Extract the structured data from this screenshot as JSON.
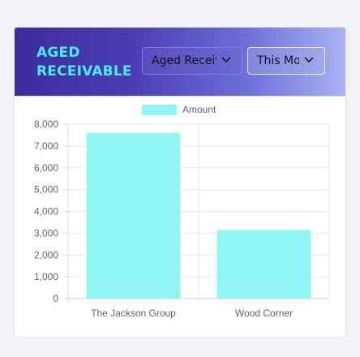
{
  "card": {
    "title": "AGED\nRECEIVABLE",
    "report_select": {
      "value": "Aged Receivable"
    },
    "period_select": {
      "value": "This Month"
    },
    "chevron_icon": "chevron-down-icon"
  },
  "colors": {
    "title": "#3ff0f3",
    "bar": "#8ff6f4",
    "header_start": "#3d2c9d",
    "header_end": "#a9b4f3"
  },
  "chart_data": {
    "type": "bar",
    "categories": [
      "The Jackson Group",
      "Wood Corner"
    ],
    "series": [
      {
        "name": "Amount",
        "values": [
          7600,
          3150
        ]
      }
    ],
    "y_ticks": [
      "0",
      "1,000",
      "2,000",
      "3,000",
      "4,000",
      "5,000",
      "6,000",
      "7,000",
      "8,000"
    ],
    "ylim": [
      0,
      8000
    ],
    "legend": "top-center",
    "grid": true
  }
}
